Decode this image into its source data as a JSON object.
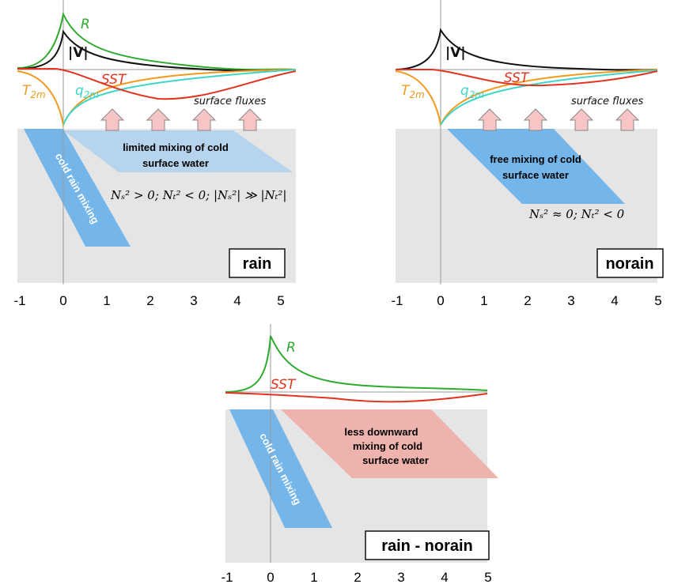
{
  "panels": [
    {
      "name": "rain",
      "x_ticks": [
        -1,
        0,
        1,
        2,
        3,
        4,
        5
      ],
      "labels": {
        "R": "R",
        "V": "|V|",
        "SST": "SST",
        "T2m": "T",
        "T2m_sub": "2m",
        "q2m": "q",
        "q2m_sub": "2m",
        "surface_fluxes": "surface fluxes",
        "mixing": [
          "limited mixing of cold",
          "surface water"
        ],
        "rain_mixing": "cold rain mixing",
        "equation": "Nₛ² > 0; Nₜ² < 0; |Nₛ²| ≫ |Nₜ²|"
      }
    },
    {
      "name": "norain",
      "x_ticks": [
        -1,
        0,
        1,
        2,
        3,
        4,
        5
      ],
      "labels": {
        "V": "|V|",
        "SST": "SST",
        "T2m": "T",
        "T2m_sub": "2m",
        "q2m": "q",
        "q2m_sub": "2m",
        "surface_fluxes": "surface fluxes",
        "mixing": [
          "free mixing of cold",
          "surface water"
        ],
        "equation": "Nₛ² ≈ 0; Nₜ² < 0"
      }
    },
    {
      "name": "rain - norain",
      "x_ticks": [
        -1,
        0,
        1,
        2,
        3,
        4,
        5
      ],
      "labels": {
        "R": "R",
        "SST": "SST",
        "mixing": [
          "less downward",
          "mixing of cold",
          "surface water"
        ],
        "rain_mixing": "cold rain mixing"
      }
    }
  ]
}
